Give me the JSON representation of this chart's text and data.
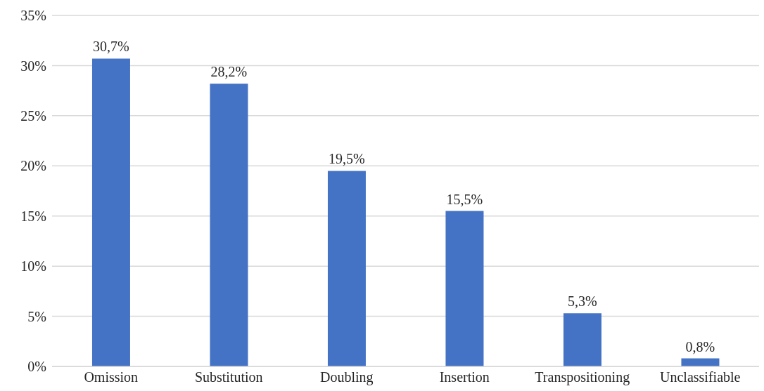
{
  "chart_data": {
    "type": "bar",
    "categories": [
      "Omission",
      "Substitution",
      "Doubling",
      "Insertion",
      "Transpositioning",
      "Unclassifiable"
    ],
    "values": [
      30.7,
      28.2,
      19.5,
      15.5,
      5.3,
      0.8
    ],
    "value_labels": [
      "30,7%",
      "28,2%",
      "19,5%",
      "15,5%",
      "5,3%",
      "0,8%"
    ],
    "color": "#4472c4",
    "ylim": [
      0,
      35
    ],
    "yticks": [
      {
        "value": 0,
        "label": "0%"
      },
      {
        "value": 5,
        "label": "5%"
      },
      {
        "value": 10,
        "label": "10%"
      },
      {
        "value": 15,
        "label": "15%"
      },
      {
        "value": 20,
        "label": "20%"
      },
      {
        "value": 25,
        "label": "25%"
      },
      {
        "value": 30,
        "label": "30%"
      },
      {
        "value": 35,
        "label": "35%"
      }
    ],
    "grid": "y"
  }
}
